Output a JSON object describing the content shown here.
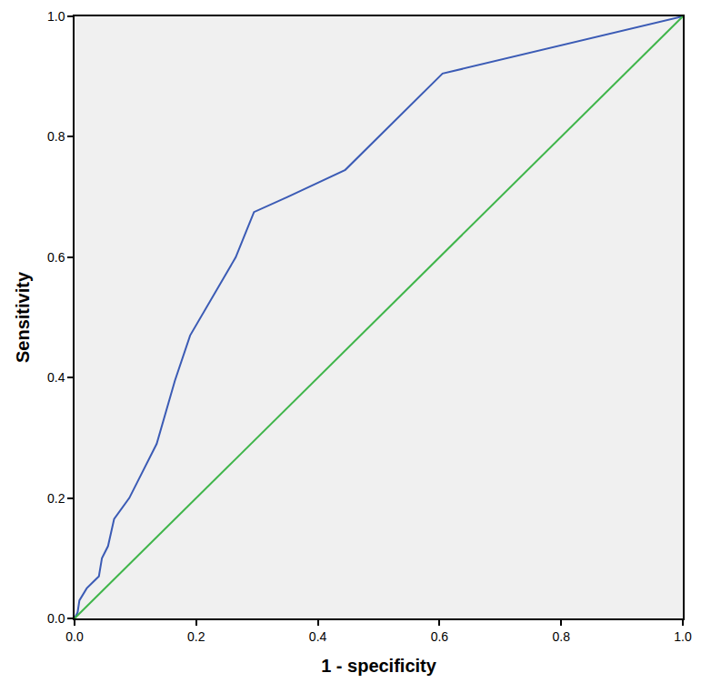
{
  "chart_data": {
    "type": "line",
    "x_label": "1 - specificity",
    "y_label": "Sensitivity",
    "xlim": [
      0,
      1
    ],
    "ylim": [
      0,
      1
    ],
    "xticks": [
      {
        "value": 0,
        "label": "0.0"
      },
      0.2,
      0.4,
      0.6,
      0.8,
      {
        "value": 1,
        "label": "1.0"
      }
    ],
    "yticks": [
      {
        "value": 0,
        "label": "0.0"
      },
      0.2,
      0.4,
      0.6,
      0.8,
      {
        "value": 1,
        "label": "1.0"
      }
    ],
    "grid": false,
    "series": [
      {
        "color": "#3b5bb5",
        "x": [
          0,
          0.005,
          0.008,
          0.02,
          0.03,
          0.04,
          0.045,
          0.055,
          0.065,
          0.09,
          0.135,
          0.165,
          0.19,
          0.23,
          0.265,
          0.295,
          0.35,
          0.445,
          0.52,
          0.605,
          1
        ],
        "values": [
          0,
          0.01,
          0.03,
          0.05,
          0.06,
          0.07,
          0.1,
          0.12,
          0.165,
          0.2,
          0.29,
          0.395,
          0.47,
          0.54,
          0.6,
          0.675,
          0.7,
          0.745,
          0.82,
          0.905,
          1
        ]
      },
      {
        "color": "#3fb54a",
        "x": [
          0,
          1
        ],
        "values": [
          0,
          1
        ]
      }
    ]
  }
}
